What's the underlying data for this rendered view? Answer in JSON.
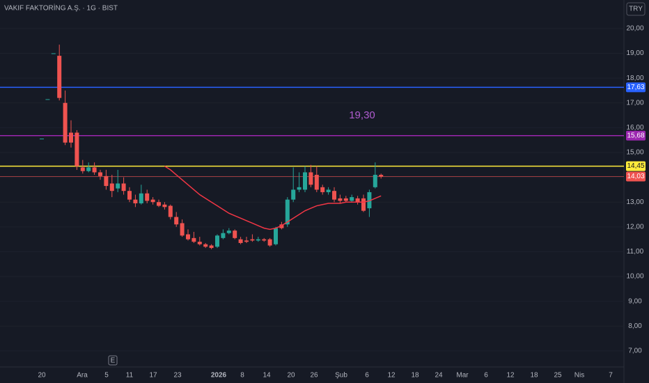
{
  "chart_data": {
    "type": "candlestick",
    "title": "VAKIF FAKTORİNG A.Ş. · 1G · BIST",
    "currency": "TRY",
    "annotation": "19,30",
    "event_marker": "E",
    "ylim": [
      6.35,
      21.15
    ],
    "yticks": [
      {
        "value": 7,
        "label": "7,00"
      },
      {
        "value": 8,
        "label": "8,00"
      },
      {
        "value": 9,
        "label": "9,00"
      },
      {
        "value": 10,
        "label": "10,00"
      },
      {
        "value": 11,
        "label": "11,00"
      },
      {
        "value": 12,
        "label": "12,00"
      },
      {
        "value": 13,
        "label": "13,00"
      },
      {
        "value": 14,
        "label": "14,00"
      },
      {
        "value": 15,
        "label": "15,00"
      },
      {
        "value": 16,
        "label": "16,00"
      },
      {
        "value": 17,
        "label": "17,00"
      },
      {
        "value": 18,
        "label": "18,00"
      },
      {
        "value": 19,
        "label": "19,00"
      },
      {
        "value": 20,
        "label": "20,00"
      }
    ],
    "x_labels": [
      "20",
      "Ara",
      "5",
      "11",
      "17",
      "23",
      "2026",
      "8",
      "14",
      "20",
      "26",
      "Şub",
      "6",
      "12",
      "18",
      "24",
      "Mar",
      "6",
      "12",
      "18",
      "25",
      "Nis",
      "7"
    ],
    "up_color": "#26a69a",
    "down_color": "#ef5350",
    "open": [
      15.56,
      17.15,
      19.0,
      18.9,
      17.0,
      15.8,
      15.8,
      14.4,
      14.25,
      14.4,
      14.2,
      14.05,
      13.75,
      13.55,
      13.75,
      13.45,
      13.1,
      12.95,
      13.35,
      13.1,
      13.0,
      12.9,
      12.85,
      12.4,
      12.15,
      11.7,
      11.55,
      11.4,
      11.3,
      11.25,
      11.2,
      11.55,
      11.75,
      11.85,
      11.5,
      11.45,
      11.5,
      11.45,
      11.5,
      11.5,
      11.3,
      12.1,
      12.1,
      13.1,
      13.5,
      13.5,
      14.2,
      14.1,
      13.6,
      13.4,
      13.45,
      13.15,
      13.15,
      13.05,
      13.15,
      13.15,
      12.75,
      13.6,
      14.1
    ],
    "high": [
      15.56,
      17.15,
      19.0,
      19.35,
      17.5,
      16.3,
      15.9,
      14.7,
      14.6,
      14.6,
      14.3,
      14.3,
      14.1,
      14.3,
      14.0,
      13.6,
      13.3,
      13.7,
      13.5,
      13.2,
      13.1,
      13.0,
      12.9,
      12.6,
      12.3,
      11.9,
      11.8,
      11.6,
      11.35,
      11.3,
      11.7,
      11.9,
      11.95,
      11.9,
      11.6,
      11.6,
      11.7,
      11.6,
      11.55,
      11.55,
      12.0,
      12.2,
      13.2,
      14.4,
      14.2,
      14.45,
      14.5,
      14.45,
      13.7,
      13.6,
      13.6,
      13.3,
      13.25,
      13.3,
      13.25,
      13.3,
      13.5,
      14.6,
      14.15
    ],
    "low": [
      15.56,
      17.15,
      19.0,
      17.1,
      15.3,
      15.2,
      14.3,
      14.15,
      14.2,
      14.1,
      13.9,
      13.5,
      13.2,
      13.4,
      13.3,
      13.0,
      12.8,
      12.9,
      12.95,
      12.9,
      12.8,
      12.7,
      12.3,
      12.0,
      11.6,
      11.45,
      11.35,
      11.25,
      11.15,
      11.1,
      11.15,
      11.5,
      11.7,
      11.5,
      11.3,
      11.35,
      11.4,
      11.4,
      11.4,
      11.2,
      11.25,
      11.9,
      12.0,
      13.0,
      13.4,
      13.4,
      13.6,
      13.4,
      13.3,
      13.3,
      13.0,
      12.95,
      13.0,
      13.0,
      12.9,
      12.6,
      12.4,
      13.55,
      13.95
    ],
    "close": [
      15.56,
      17.15,
      19.0,
      17.2,
      15.4,
      15.4,
      14.45,
      14.25,
      14.4,
      14.2,
      14.05,
      13.65,
      13.45,
      13.75,
      13.45,
      13.1,
      12.95,
      13.35,
      13.05,
      13.0,
      12.85,
      12.8,
      12.4,
      12.1,
      11.65,
      11.5,
      11.4,
      11.3,
      11.2,
      11.15,
      11.65,
      11.75,
      11.85,
      11.55,
      11.35,
      11.4,
      11.45,
      11.5,
      11.45,
      11.25,
      11.95,
      11.95,
      13.1,
      13.5,
      13.6,
      14.2,
      13.7,
      13.5,
      13.4,
      13.5,
      13.1,
      13.05,
      13.05,
      13.2,
      13.0,
      12.65,
      13.4,
      14.1,
      14.03
    ],
    "ma": {
      "color": "#f23645",
      "values": [
        null,
        null,
        null,
        null,
        null,
        null,
        null,
        null,
        null,
        null,
        null,
        null,
        null,
        null,
        null,
        null,
        null,
        null,
        null,
        null,
        null,
        14.45,
        14.3,
        14.1,
        13.9,
        13.7,
        13.5,
        13.3,
        13.15,
        13.0,
        12.85,
        12.7,
        12.55,
        12.45,
        12.35,
        12.25,
        12.15,
        12.05,
        11.95,
        11.9,
        11.95,
        12.05,
        12.2,
        12.35,
        12.5,
        12.65,
        12.75,
        12.85,
        12.9,
        12.95,
        12.95,
        12.95,
        13.0,
        13.0,
        13.0,
        13.0,
        13.05,
        13.15,
        13.25
      ]
    },
    "hlines": [
      {
        "value": 17.63,
        "label": "17,63",
        "color": "#2962ff"
      },
      {
        "value": 15.68,
        "label": "15,68",
        "color": "#9c27b0"
      },
      {
        "value": 14.45,
        "label": "14,45",
        "color": "#ffeb3b"
      },
      {
        "value": 14.03,
        "label": "14,03",
        "color": "#ef5350"
      }
    ]
  }
}
